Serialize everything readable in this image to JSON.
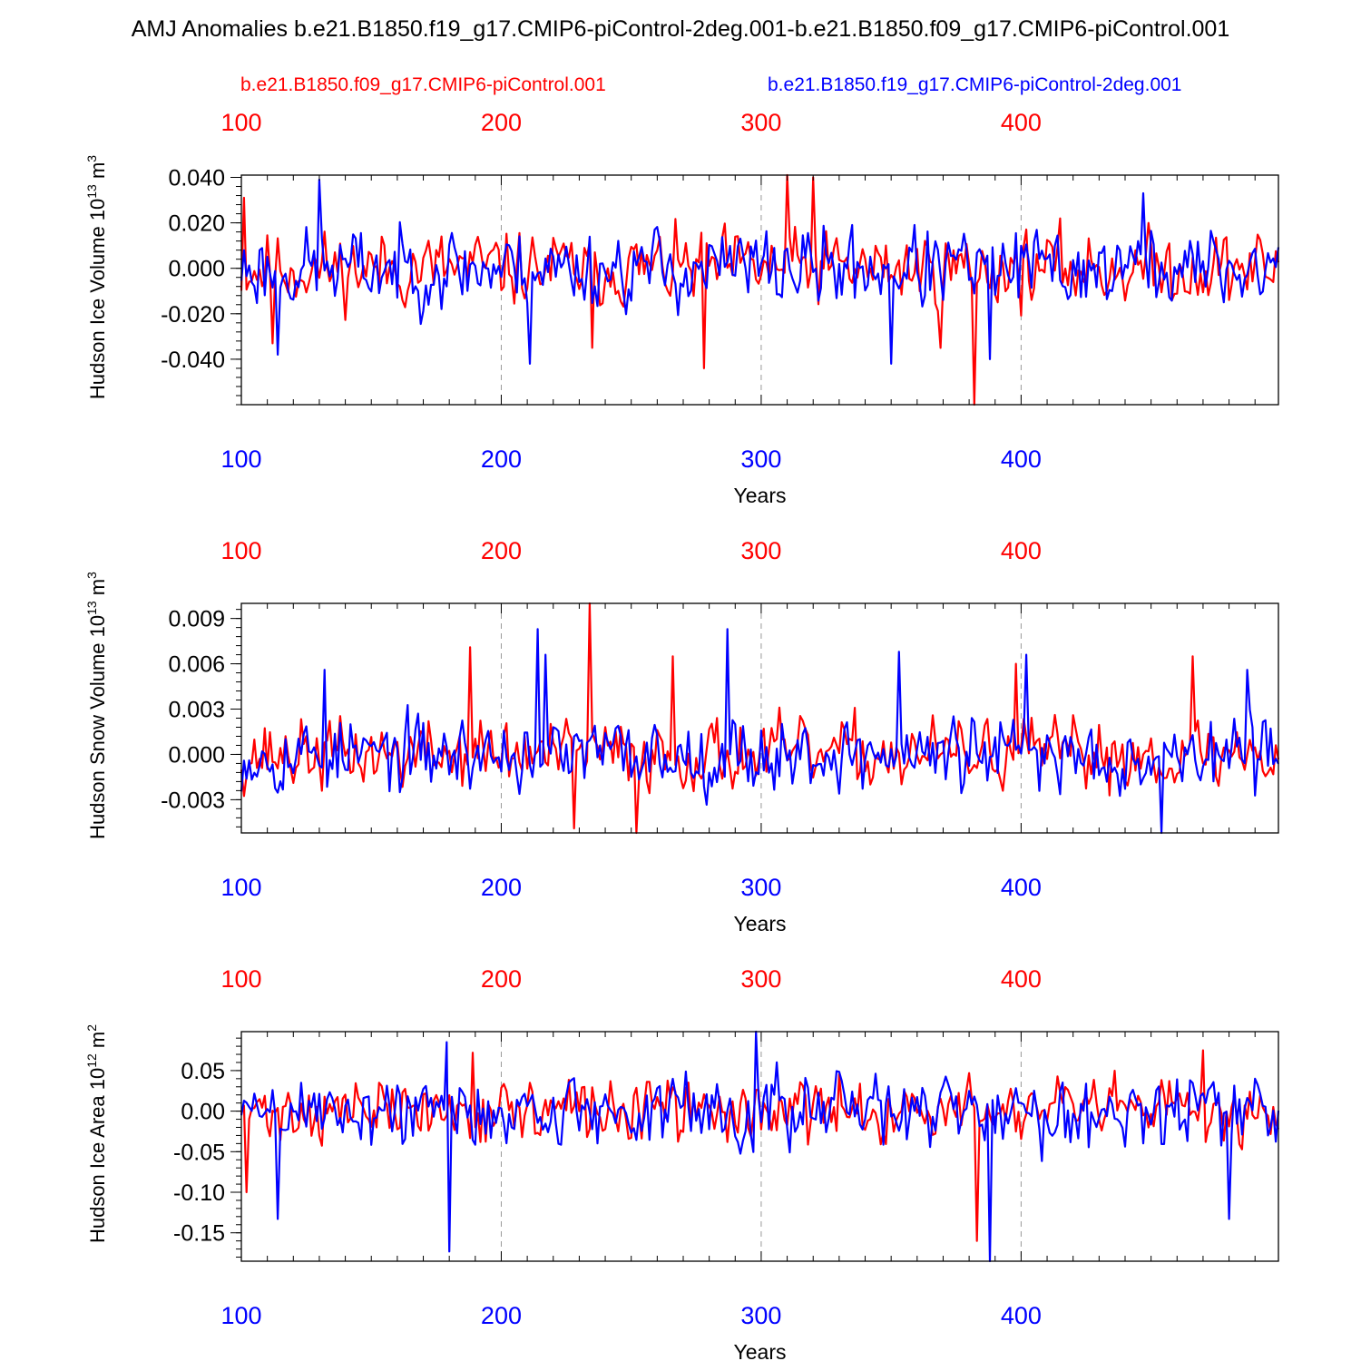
{
  "title": "AMJ Anomalies b.e21.B1850.f19_g17.CMIP6-piControl-2deg.001-b.e21.B1850.f09_g17.CMIP6-piControl.001",
  "legend": {
    "red": "b.e21.B1850.f09_g17.CMIP6-piControl.001",
    "blue": "b.e21.B1850.f19_g17.CMIP6-piControl-2deg.001"
  },
  "colors": {
    "red": "#ff0000",
    "blue": "#0000ff",
    "axis": "#000000"
  },
  "chart_data": [
    {
      "type": "line",
      "ylabel": "Hudson Ice Volume 10",
      "ylabel_exp": "13",
      "ylabel_unit": "m",
      "ylabel_unit_exp": "3",
      "xlabel": "Years",
      "xlim": [
        100,
        499
      ],
      "xticks": [
        100,
        200,
        300,
        400
      ],
      "xtick_labels": [
        "100",
        "200",
        "300",
        "400"
      ],
      "ylim": [
        -0.06,
        0.041
      ],
      "yticks": [
        0.04,
        0.02,
        0.0,
        -0.02,
        -0.04
      ],
      "ytick_labels": [
        "0.040",
        "0.020",
        "0.000",
        "-0.020",
        "-0.040"
      ],
      "series": [
        {
          "name": "b.e21.B1850.f09_g17.CMIP6-piControl.001",
          "color": "red",
          "amp": 0.012,
          "seed": 11,
          "spikes": [
            [
              101,
              0.031
            ],
            [
              112,
              -0.033
            ],
            [
              310,
              0.041
            ],
            [
              320,
              0.04
            ],
            [
              278,
              -0.044
            ],
            [
              382,
              -0.06
            ],
            [
              235,
              -0.035
            ],
            [
              369,
              -0.035
            ]
          ]
        },
        {
          "name": "b.e21.B1850.f19_g17.CMIP6-piControl-2deg.001",
          "color": "blue",
          "amp": 0.013,
          "seed": 23,
          "spikes": [
            [
              130,
              0.039
            ],
            [
              114,
              -0.038
            ],
            [
              211,
              -0.042
            ],
            [
              350,
              -0.042
            ],
            [
              388,
              -0.04
            ],
            [
              447,
              0.033
            ]
          ]
        }
      ]
    },
    {
      "type": "line",
      "ylabel": "Hudson Snow Volume 10",
      "ylabel_exp": "13",
      "ylabel_unit": "m",
      "ylabel_unit_exp": "3",
      "xlabel": "Years",
      "xlim": [
        100,
        499
      ],
      "xticks": [
        100,
        200,
        300,
        400
      ],
      "xtick_labels": [
        "100",
        "200",
        "300",
        "400"
      ],
      "ylim": [
        -0.0052,
        0.01
      ],
      "yticks": [
        0.009,
        0.006,
        0.003,
        0.0,
        -0.003
      ],
      "ytick_labels": [
        "0.009",
        "0.006",
        "0.003",
        "0.000",
        "-0.003"
      ],
      "series": [
        {
          "name": "b.e21.B1850.f09_g17.CMIP6-piControl.001",
          "color": "red",
          "amp": 0.0017,
          "seed": 37,
          "spikes": [
            [
              188,
              0.0071
            ],
            [
              234,
              0.01
            ],
            [
              252,
              -0.0052
            ],
            [
              266,
              0.0065
            ],
            [
              466,
              0.0065
            ],
            [
              398,
              0.006
            ],
            [
              228,
              -0.0049
            ]
          ]
        },
        {
          "name": "b.e21.B1850.f19_g17.CMIP6-piControl-2deg.001",
          "color": "blue",
          "amp": 0.0018,
          "seed": 53,
          "spikes": [
            [
              214,
              0.0083
            ],
            [
              287,
              0.0083
            ],
            [
              217,
              0.0066
            ],
            [
              353,
              0.0068
            ],
            [
              402,
              0.0066
            ],
            [
              454,
              -0.0052
            ],
            [
              487,
              0.0056
            ],
            [
              132,
              0.0056
            ]
          ]
        }
      ]
    },
    {
      "type": "line",
      "ylabel": "Hudson Ice Area 10",
      "ylabel_exp": "12",
      "ylabel_unit": "m",
      "ylabel_unit_exp": "2",
      "xlabel": "Years",
      "xlim": [
        100,
        499
      ],
      "xticks": [
        100,
        200,
        300,
        400
      ],
      "xtick_labels": [
        "100",
        "200",
        "300",
        "400"
      ],
      "ylim": [
        -0.185,
        0.098
      ],
      "yticks": [
        0.05,
        0.0,
        -0.05,
        -0.1,
        -0.15
      ],
      "ytick_labels": [
        "0.05",
        "0.00",
        "-0.05",
        "-0.10",
        "-0.15"
      ],
      "series": [
        {
          "name": "b.e21.B1850.f09_g17.CMIP6-piControl.001",
          "color": "red",
          "amp": 0.028,
          "seed": 71,
          "spikes": [
            [
              102,
              -0.1
            ],
            [
              383,
              -0.16
            ],
            [
              189,
              0.072
            ],
            [
              470,
              0.075
            ]
          ]
        },
        {
          "name": "b.e21.B1850.f19_g17.CMIP6-piControl-2deg.001",
          "color": "blue",
          "amp": 0.033,
          "seed": 89,
          "spikes": [
            [
              114,
              -0.133
            ],
            [
              180,
              -0.173
            ],
            [
              298,
              0.098
            ],
            [
              388,
              -0.185
            ],
            [
              179,
              0.085
            ],
            [
              480,
              -0.133
            ]
          ]
        }
      ]
    }
  ]
}
